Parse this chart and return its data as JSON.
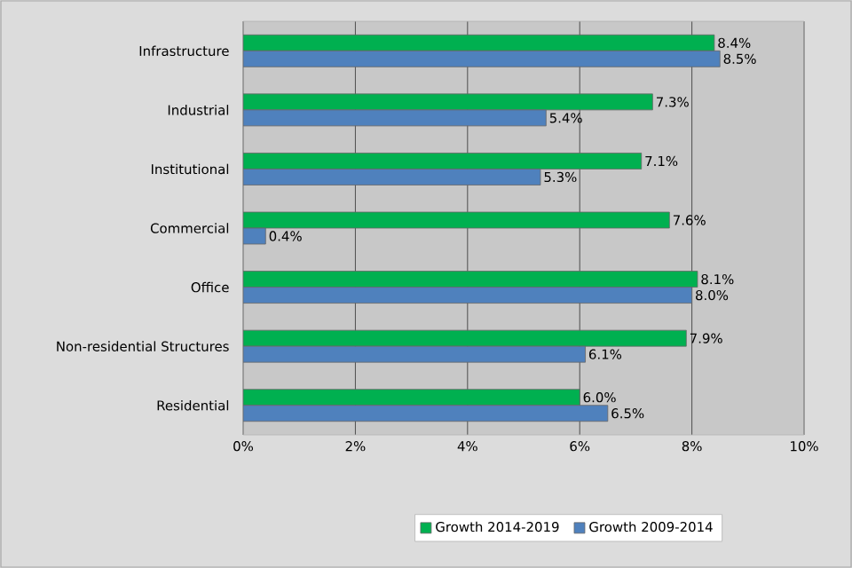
{
  "chart_data": {
    "type": "bar",
    "orientation": "horizontal",
    "categories": [
      "Infrastructure",
      "Industrial",
      "Institutional",
      "Commercial",
      "Office",
      "Non-residential Structures",
      "Residential"
    ],
    "series": [
      {
        "name": "Growth 2014-2019",
        "color": "#00b050",
        "values": [
          8.4,
          7.3,
          7.1,
          7.6,
          8.1,
          7.9,
          6.0
        ],
        "value_labels": [
          "8.4%",
          "7.3%",
          "7.1%",
          "7.6%",
          "8.1%",
          "7.9%",
          "6.0%"
        ]
      },
      {
        "name": "Growth 2009-2014",
        "color": "#4f81bd",
        "values": [
          8.5,
          5.4,
          5.3,
          0.4,
          8.0,
          6.1,
          6.5
        ],
        "value_labels": [
          "8.5%",
          "5.4%",
          "5.3%",
          "0.4%",
          "8.0%",
          "6.1%",
          "6.5%"
        ]
      }
    ],
    "xlim": [
      0,
      10
    ],
    "xticks": [
      {
        "value": 0,
        "label": "0%"
      },
      {
        "value": 2,
        "label": "2%"
      },
      {
        "value": 4,
        "label": "4%"
      },
      {
        "value": 6,
        "label": "6%"
      },
      {
        "value": 8,
        "label": "8%"
      },
      {
        "value": 10,
        "label": "10%"
      }
    ],
    "grid": "x",
    "legend": "bottom"
  }
}
